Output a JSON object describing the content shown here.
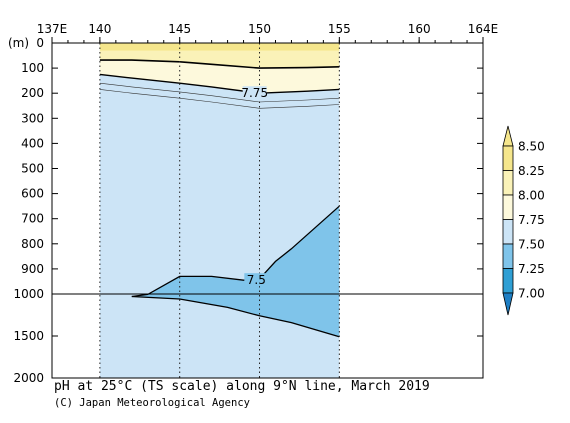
{
  "chart_data": {
    "type": "contour",
    "title": "pH at 25°C (TS scale) along 9°N line, March 2019",
    "credit": "(C) Japan Meteorological Agency",
    "xlabel": "",
    "ylabel": "(m)",
    "x_ticks": [
      "137E",
      "140",
      "145",
      "150",
      "155",
      "160",
      "164E"
    ],
    "x_tick_values": [
      137,
      140,
      145,
      150,
      155,
      160,
      164
    ],
    "x_range": [
      137,
      164
    ],
    "y_ticks": [
      "0",
      "100",
      "200",
      "300",
      "400",
      "500",
      "600",
      "700",
      "800",
      "900",
      "1000",
      "1500",
      "2000"
    ],
    "y_tick_values": [
      0,
      100,
      200,
      300,
      400,
      500,
      600,
      700,
      800,
      900,
      1000,
      1500,
      2000
    ],
    "y_axis_note": "depth axis: linear 0-1000 m, compressed 1000-2000 m",
    "data_extent_lon": [
      140,
      155
    ],
    "stations_lon": [
      140,
      145,
      150,
      155
    ],
    "contour_labels": [
      "7.75",
      "7.5"
    ],
    "colorbar": {
      "levels": [
        "8.50",
        "8.25",
        "8.00",
        "7.75",
        "7.50",
        "7.25",
        "7.00"
      ],
      "colors": [
        "#f5e68c",
        "#faf2b8",
        "#fdf9dc",
        "#cce4f6",
        "#7fc4ea",
        "#2f9fd4",
        "#1f7fc4"
      ]
    },
    "contours": [
      {
        "level": 8.0,
        "lon": [
          140,
          142,
          145,
          147,
          150,
          153,
          155
        ],
        "depth": [
          68,
          68,
          75,
          85,
          100,
          98,
          95
        ]
      },
      {
        "level": 7.75,
        "lon": [
          140,
          142,
          145,
          147,
          150,
          153,
          155
        ],
        "depth": [
          125,
          140,
          160,
          175,
          200,
          192,
          185
        ]
      },
      {
        "level": 7.5,
        "lon": [
          142,
          143,
          145,
          147,
          149,
          150,
          151,
          152,
          155
        ],
        "depth": [
          1030,
          1005,
          930,
          930,
          945,
          940,
          870,
          820,
          650
        ]
      },
      {
        "level": 7.5,
        "lon": [
          142,
          145,
          148,
          150,
          152,
          155
        ],
        "depth": [
          1030,
          1060,
          1160,
          1260,
          1340,
          1510
        ]
      }
    ]
  }
}
